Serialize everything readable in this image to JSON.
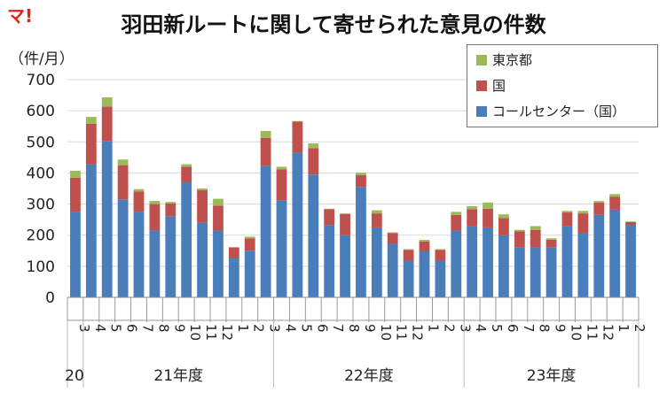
{
  "brand": {
    "logo_text": "マ!"
  },
  "chart_data": {
    "type": "bar",
    "stacked": true,
    "title": "羽田新ルートに関して寄せられた意見の件数",
    "ylabel": "（件/月）",
    "ylim": [
      0,
      700
    ],
    "yticks": [
      0,
      100,
      200,
      300,
      400,
      500,
      600,
      700
    ],
    "grid": true,
    "legend_position": "top-right",
    "categories": [
      "3",
      "4",
      "5",
      "6",
      "7",
      "8",
      "9",
      "10",
      "11",
      "12",
      "1",
      "2",
      "3",
      "4",
      "5",
      "6",
      "7",
      "8",
      "9",
      "10",
      "11",
      "12",
      "1",
      "2",
      "3",
      "4",
      "5",
      "6",
      "7",
      "8",
      "9",
      "10",
      "11",
      "12",
      "1",
      "2"
    ],
    "period_labels": [
      "20",
      "21年度",
      "22年度",
      "23年度"
    ],
    "series": [
      {
        "name": "コールセンター（国）",
        "color": "#4a7ebb",
        "values": [
          275,
          428,
          503,
          315,
          275,
          215,
          260,
          370,
          240,
          215,
          125,
          150,
          423,
          312,
          465,
          395,
          233,
          200,
          355,
          225,
          172,
          118,
          148,
          118,
          215,
          228,
          225,
          200,
          160,
          162,
          160,
          228,
          205,
          265,
          282,
          232
        ]
      },
      {
        "name": "国",
        "color": "#c0504d",
        "values": [
          110,
          130,
          110,
          110,
          65,
          85,
          42,
          50,
          105,
          80,
          35,
          40,
          90,
          100,
          100,
          85,
          50,
          68,
          38,
          45,
          35,
          35,
          32,
          35,
          50,
          55,
          60,
          55,
          52,
          55,
          25,
          45,
          65,
          40,
          42,
          10
        ]
      },
      {
        "name": "東京都",
        "color": "#9bbb59",
        "values": [
          22,
          22,
          30,
          18,
          8,
          10,
          5,
          8,
          5,
          22,
          2,
          5,
          22,
          8,
          2,
          15,
          2,
          2,
          8,
          10,
          2,
          2,
          5,
          2,
          10,
          10,
          20,
          12,
          5,
          12,
          5,
          5,
          8,
          5,
          8,
          2
        ]
      }
    ]
  }
}
